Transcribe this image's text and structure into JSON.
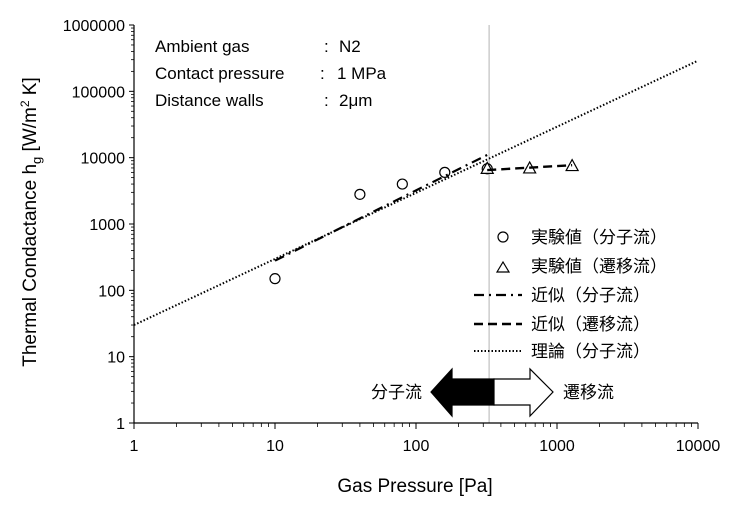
{
  "chart_data": {
    "type": "scatter",
    "xlabel": "Gas Pressure [Pa]",
    "ylabel_main": "Thermal Condactance h",
    "ylabel_sub": "g",
    "ylabel_unit_pre": " [W/m",
    "ylabel_sup": "2",
    "ylabel_unit_post": " K]",
    "x_scale": "log",
    "y_scale": "log",
    "xlim": [
      1,
      10000
    ],
    "ylim": [
      1,
      1000000
    ],
    "x_ticks": [
      "1",
      "10",
      "100",
      "1000",
      "10000"
    ],
    "y_ticks": [
      "1",
      "10",
      "100",
      "1000",
      "10000",
      "100000",
      "1000000"
    ],
    "grid": false,
    "vertical_reference_line_x": 330,
    "annotations": [
      {
        "label": "Ambient gas",
        "sep": ":",
        "value": "N2"
      },
      {
        "label": "Contact pressure",
        "sep": ":",
        "value": "1 MPa"
      },
      {
        "label": "Distance walls",
        "sep": ":",
        "value": "2μm"
      }
    ],
    "series": [
      {
        "name": "実験値（分子流）",
        "style": "circle",
        "x": [
          10,
          40,
          80,
          160,
          320
        ],
        "y": [
          150,
          2800,
          4000,
          6000,
          6800
        ]
      },
      {
        "name": "実験値（遷移流）",
        "style": "triangle",
        "x": [
          320,
          640,
          1280
        ],
        "y": [
          6900,
          7000,
          7600
        ]
      },
      {
        "name": "近似（分子流）",
        "style": "dashdot",
        "x": [
          10,
          320
        ],
        "y": [
          280,
          11000
        ]
      },
      {
        "name": "近似（遷移流）",
        "style": "dashed",
        "x": [
          320,
          1280
        ],
        "y": [
          6500,
          7700
        ]
      },
      {
        "name": "理論（分子流）",
        "style": "dotted",
        "x": [
          1,
          10000
        ],
        "y": [
          30,
          290000
        ]
      }
    ],
    "legend_position": "lower-right",
    "regime_labels": {
      "left": "分子流",
      "right": "遷移流"
    },
    "colors": {
      "line": "#000000",
      "arrow_fill_left": "#000000",
      "arrow_fill_right": "#ffffff",
      "reference_line": "#bfbfbf"
    }
  }
}
